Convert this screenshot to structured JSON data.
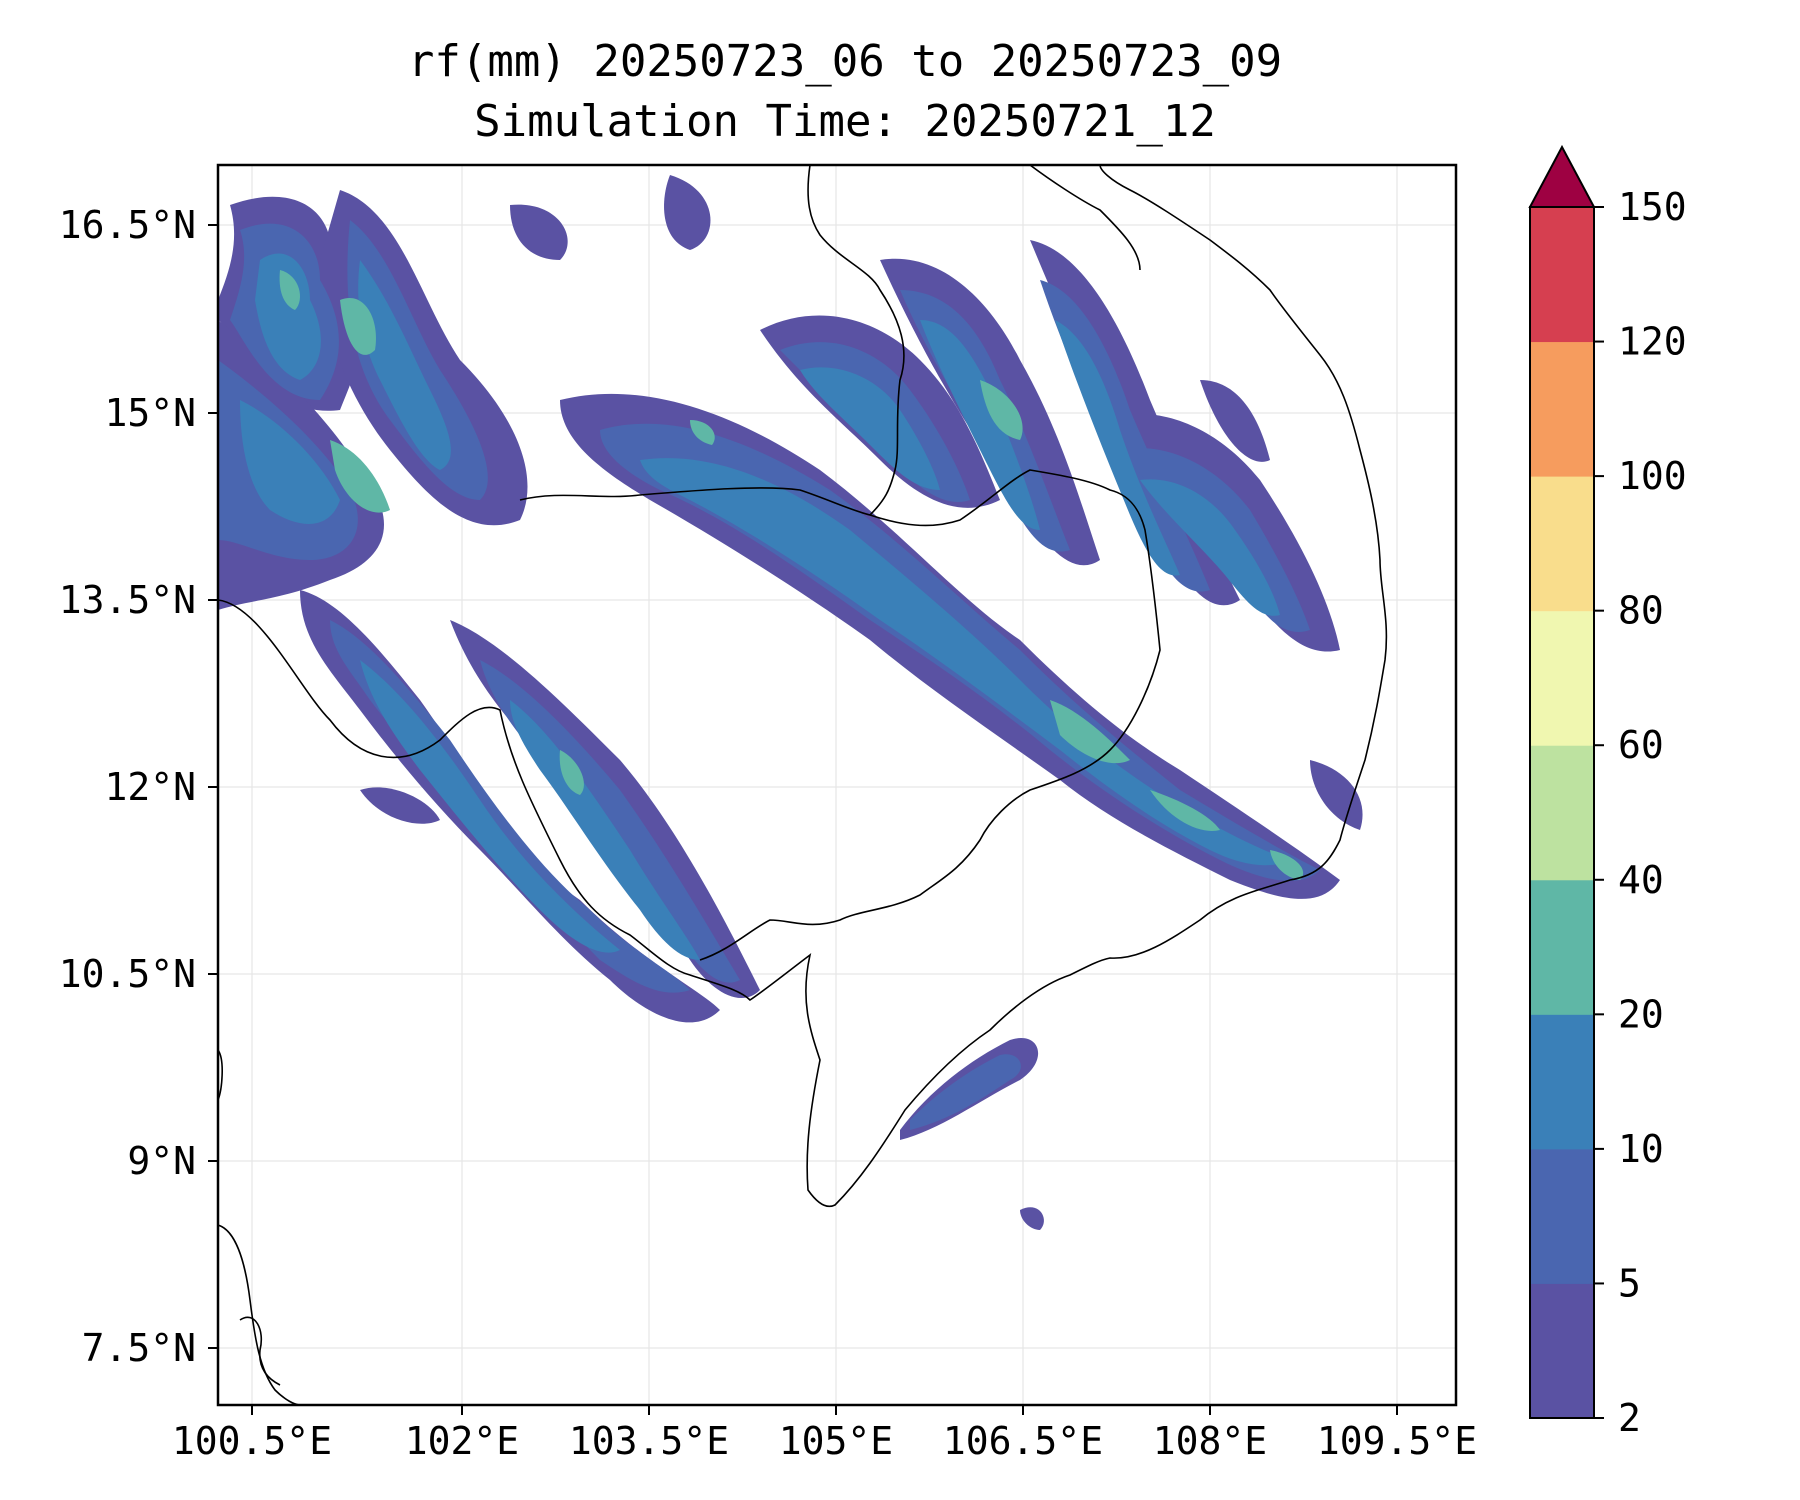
{
  "title": {
    "line1": "rf(mm) 20250723_06 to 20250723_09",
    "line2": "Simulation Time: 20250721_12"
  },
  "axes": {
    "lon_ticks": [
      "100.5°E",
      "102°E",
      "103.5°E",
      "105°E",
      "106.5°E",
      "108°E",
      "109.5°E"
    ],
    "lat_ticks": [
      "16.5°N",
      "15°N",
      "13.5°N",
      "12°N",
      "10.5°N",
      "9°N",
      "7.5°N"
    ]
  },
  "colorbar": {
    "ticks": [
      "2",
      "5",
      "10",
      "20",
      "40",
      "60",
      "80",
      "100",
      "120",
      "150"
    ],
    "colors": [
      "#5a52a3",
      "#4a66b0",
      "#3a80b8",
      "#5fb7a6",
      "#bde2a0",
      "#f0f7b0",
      "#f9dd8c",
      "#f69c5e",
      "#d63f50",
      "#9e0142"
    ]
  },
  "colors": {
    "coast": "#000000",
    "grid": "#e6e6e6"
  }
}
